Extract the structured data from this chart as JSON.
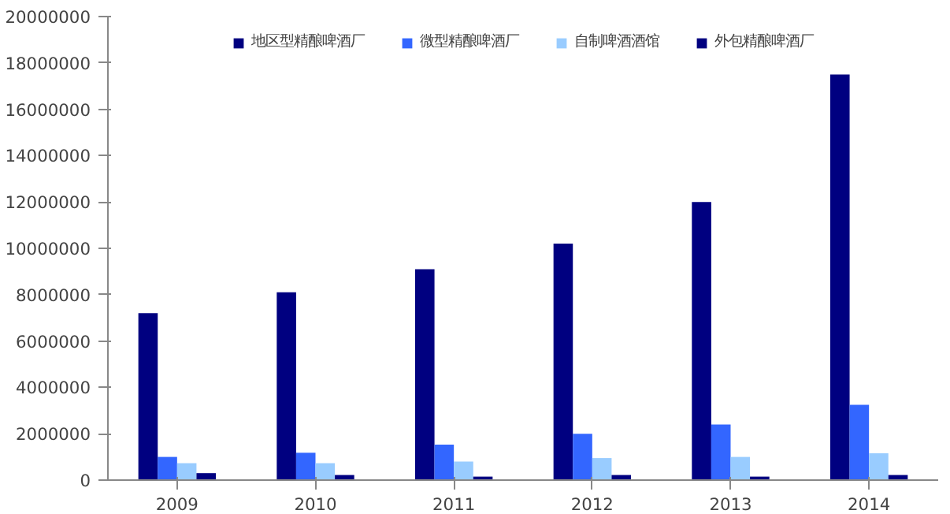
{
  "chart_data": {
    "type": "bar",
    "categories": [
      "2009",
      "2010",
      "2011",
      "2012",
      "2013",
      "2014"
    ],
    "series": [
      {
        "name": "地区型精酿啤酒厂",
        "color": "#000080",
        "values": [
          7200000,
          8100000,
          9100000,
          10200000,
          12000000,
          17500000
        ]
      },
      {
        "name": "微型精酿啤酒厂",
        "color": "#3366ff",
        "values": [
          1000000,
          1180000,
          1530000,
          2000000,
          2400000,
          3250000
        ]
      },
      {
        "name": "自制啤酒酒馆",
        "color": "#99ccff",
        "values": [
          730000,
          730000,
          800000,
          950000,
          1000000,
          1160000
        ]
      },
      {
        "name": "外包精酿啤酒厂",
        "color": "#000080",
        "values": [
          300000,
          220000,
          150000,
          220000,
          150000,
          220000
        ]
      }
    ],
    "ylim": [
      0,
      20000000
    ],
    "yticks": [
      0,
      2000000,
      4000000,
      6000000,
      8000000,
      10000000,
      12000000,
      14000000,
      16000000,
      18000000,
      20000000
    ],
    "grid": false,
    "legend": "top"
  }
}
